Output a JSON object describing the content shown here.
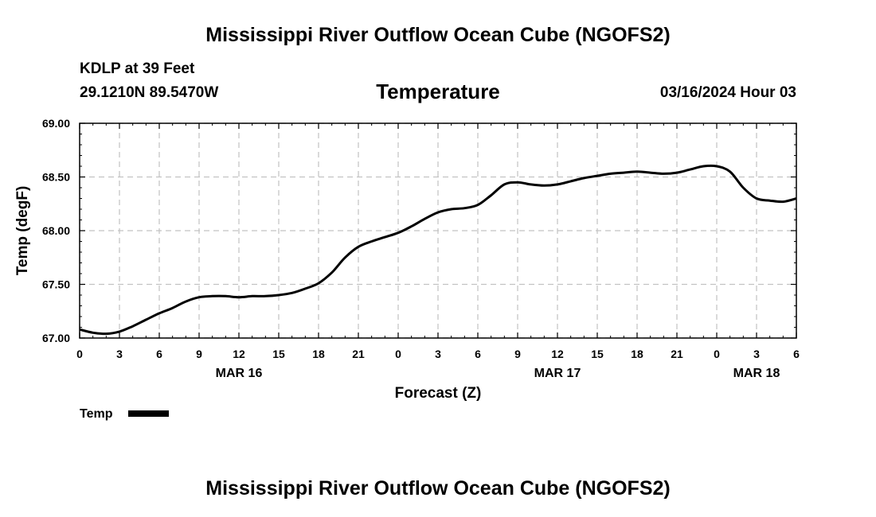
{
  "page": {
    "title_top": "Mississippi River Outflow Ocean Cube (NGOFS2)",
    "title_bottom": "Mississippi River Outflow Ocean Cube (NGOFS2)",
    "station": "KDLP at 39 Feet",
    "coords": "29.1210N  89.5470W",
    "datetime": "03/16/2024 Hour 03"
  },
  "chart_data": {
    "type": "line",
    "title": "Temperature",
    "xlabel": "Forecast (Z)",
    "ylabel": "Temp (degF)",
    "xlim": [
      0,
      54
    ],
    "ylim": [
      67.0,
      69.0
    ],
    "x_tick_values": [
      0,
      3,
      6,
      9,
      12,
      15,
      18,
      21,
      24,
      27,
      30,
      33,
      36,
      39,
      42,
      45,
      48,
      51,
      54
    ],
    "x_tick_labels": [
      "0",
      "3",
      "6",
      "9",
      "12",
      "15",
      "18",
      "21",
      "0",
      "3",
      "6",
      "9",
      "12",
      "15",
      "18",
      "21",
      "0",
      "3",
      "6"
    ],
    "date_labels": [
      {
        "x": 12,
        "label": "MAR 16"
      },
      {
        "x": 36,
        "label": "MAR 17"
      },
      {
        "x": 51,
        "label": "MAR 18"
      }
    ],
    "y_tick_values": [
      67.0,
      67.5,
      68.0,
      68.5,
      69.0
    ],
    "y_tick_labels": [
      "67.00",
      "67.50",
      "68.00",
      "68.50",
      "69.00"
    ],
    "grid": true,
    "legend": [
      {
        "name": "Temp",
        "color": "#000000"
      }
    ],
    "series": [
      {
        "name": "Temp",
        "color": "#000000",
        "x": [
          0,
          1,
          2,
          3,
          4,
          5,
          6,
          7,
          8,
          9,
          10,
          11,
          12,
          13,
          14,
          15,
          16,
          17,
          18,
          19,
          20,
          21,
          22,
          23,
          24,
          25,
          26,
          27,
          28,
          29,
          30,
          31,
          32,
          33,
          34,
          35,
          36,
          37,
          38,
          39,
          40,
          41,
          42,
          43,
          44,
          45,
          46,
          47,
          48,
          49,
          50,
          51,
          52,
          53,
          54
        ],
        "values": [
          67.08,
          67.05,
          67.04,
          67.06,
          67.11,
          67.17,
          67.23,
          67.28,
          67.34,
          67.38,
          67.39,
          67.39,
          67.38,
          67.39,
          67.39,
          67.4,
          67.42,
          67.46,
          67.51,
          67.61,
          67.75,
          67.85,
          67.9,
          67.94,
          67.98,
          68.04,
          68.11,
          68.17,
          68.2,
          68.21,
          68.24,
          68.33,
          68.43,
          68.45,
          68.43,
          68.42,
          68.43,
          68.46,
          68.49,
          68.51,
          68.53,
          68.54,
          68.55,
          68.54,
          68.53,
          68.54,
          68.57,
          68.6,
          68.6,
          68.55,
          68.4,
          68.3,
          68.28,
          68.27,
          68.3
        ]
      }
    ]
  }
}
